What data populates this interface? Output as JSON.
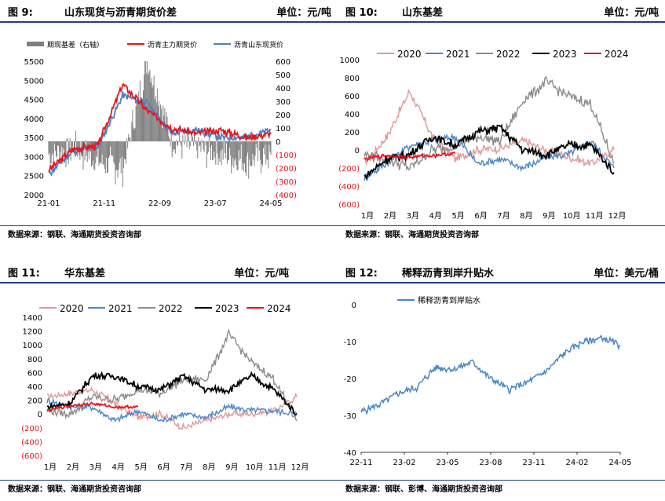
{
  "charts": [
    {
      "fig_label": "图 9:",
      "title": "山东现货与沥青期货价差",
      "unit": "单位：元/吨",
      "source": "数据来源：钢联、海通期货投资咨询部",
      "legend": [
        "期现基差（右轴）",
        "沥青主力期货价",
        "沥青山东现货价"
      ],
      "left_ticks": [
        "5500",
        "5000",
        "4500",
        "4000",
        "3500",
        "3000",
        "2500",
        "2000"
      ],
      "right_ticks": [
        "600",
        "500",
        "400",
        "300",
        "200",
        "100",
        "0",
        "(100)",
        "(200)",
        "(300)",
        "(400)"
      ],
      "x_ticks": [
        "21-01",
        "21-11",
        "22-09",
        "23-07",
        "24-05"
      ]
    },
    {
      "fig_label": "图 10:",
      "title": "山东基差",
      "unit": "单位：元/吨",
      "source": "数据来源：钢联、海通期货投资咨询部",
      "legend": [
        "2020",
        "2021",
        "2022",
        "2023",
        "2024"
      ],
      "y_ticks": [
        "1000",
        "800",
        "600",
        "400",
        "200",
        "0",
        "(200)",
        "(400)",
        "(600)"
      ],
      "x_ticks": [
        "1月",
        "2月",
        "3月",
        "4月",
        "5月",
        "6月",
        "7月",
        "8月",
        "9月",
        "10月",
        "11月",
        "12月"
      ]
    },
    {
      "fig_label": "图 11:",
      "title": "华东基差",
      "unit": "单位：元/吨",
      "source": "数据来源：钢联、海通期货投资咨询部",
      "legend": [
        "2020",
        "2021",
        "2022",
        "2023",
        "2024"
      ],
      "y_ticks": [
        "1400",
        "1200",
        "1000",
        "800",
        "600",
        "400",
        "200",
        "0",
        "(200)",
        "(400)",
        "(600)"
      ],
      "x_ticks": [
        "1月",
        "2月",
        "3月",
        "4月",
        "5月",
        "6月",
        "7月",
        "8月",
        "9月",
        "10月",
        "11月",
        "12月"
      ]
    },
    {
      "fig_label": "图 12:",
      "title": "稀释沥青到岸升贴水",
      "unit": "单位：美元/桶",
      "source": "数据来源：钢联、彭博、海通期货投资咨询部",
      "legend": [
        "稀释沥青到岸贴水"
      ],
      "y_ticks": [
        "0",
        "-10",
        "-20",
        "-30",
        "-40"
      ],
      "x_ticks": [
        "22-11",
        "23-02",
        "23-05",
        "23-08",
        "23-11",
        "24-02",
        "24-05"
      ]
    }
  ],
  "chart_data": [
    {
      "type": "line",
      "title": "山东现货与沥青期货价差",
      "x": [
        "21-01",
        "21-06",
        "21-11",
        "22-04",
        "22-06",
        "22-09",
        "23-02",
        "23-07",
        "23-12",
        "24-05"
      ],
      "ylim": [
        2000,
        5500
      ],
      "y2lim": [
        -400,
        600
      ],
      "series": [
        {
          "name": "沥青主力期货价",
          "axis": "left",
          "color": "#e8141a",
          "values": [
            2650,
            3200,
            3300,
            4900,
            4200,
            3750,
            3600,
            3700,
            3500,
            3600
          ]
        },
        {
          "name": "沥青山东现货价",
          "axis": "left",
          "color": "#4a7fc8",
          "values": [
            2550,
            3150,
            3250,
            4600,
            4400,
            3600,
            3700,
            3500,
            3500,
            3700
          ]
        },
        {
          "name": "期现基差（右轴）",
          "axis": "right",
          "type": "bar",
          "color": "#808080",
          "values": [
            -100,
            -50,
            -150,
            -200,
            600,
            0,
            -50,
            -100,
            -150,
            -100
          ]
        }
      ]
    },
    {
      "type": "line",
      "title": "山东基差",
      "categories": [
        "1月",
        "2月",
        "3月",
        "4月",
        "5月",
        "6月",
        "7月",
        "8月",
        "9月",
        "10月",
        "11月",
        "12月"
      ],
      "ylim": [
        -600,
        1000
      ],
      "series": [
        {
          "name": "2020",
          "color": "#e0999a",
          "values": [
            -150,
            150,
            650,
            150,
            -100,
            0,
            20,
            100,
            0,
            -80,
            -150,
            0
          ]
        },
        {
          "name": "2021",
          "color": "#4a86c8",
          "values": [
            -300,
            -150,
            50,
            100,
            150,
            -150,
            -100,
            -200,
            -80,
            -50,
            100,
            -200
          ]
        },
        {
          "name": "2022",
          "color": "#8c8c8c",
          "values": [
            -50,
            -100,
            -200,
            0,
            50,
            150,
            100,
            550,
            750,
            600,
            500,
            -150
          ]
        },
        {
          "name": "2023",
          "color": "#000000",
          "values": [
            -300,
            -100,
            -50,
            150,
            50,
            200,
            250,
            0,
            -50,
            50,
            50,
            -250
          ]
        },
        {
          "name": "2024",
          "color": "#e8141a",
          "values": [
            -100,
            -60,
            -80,
            -60,
            -40,
            null,
            null,
            null,
            null,
            null,
            null,
            null
          ]
        }
      ]
    },
    {
      "type": "line",
      "title": "华东基差",
      "categories": [
        "1月",
        "2月",
        "3月",
        "4月",
        "5月",
        "6月",
        "7月",
        "8月",
        "9月",
        "10月",
        "11月",
        "12月"
      ],
      "ylim": [
        -600,
        1400
      ],
      "series": [
        {
          "name": "2020",
          "color": "#e0999a",
          "values": [
            250,
            300,
            350,
            150,
            -50,
            0,
            -200,
            -100,
            0,
            0,
            50,
            250
          ]
        },
        {
          "name": "2021",
          "color": "#4a86c8",
          "values": [
            200,
            100,
            100,
            -100,
            50,
            -100,
            0,
            -50,
            100,
            50,
            50,
            0
          ]
        },
        {
          "name": "2022",
          "color": "#8c8c8c",
          "values": [
            50,
            0,
            250,
            200,
            350,
            300,
            500,
            500,
            1150,
            750,
            500,
            -100
          ]
        },
        {
          "name": "2023",
          "color": "#000000",
          "values": [
            100,
            150,
            550,
            550,
            400,
            350,
            550,
            350,
            350,
            550,
            350,
            0
          ]
        },
        {
          "name": "2024",
          "color": "#e8141a",
          "values": [
            50,
            120,
            150,
            100,
            100,
            null,
            null,
            null,
            null,
            null,
            null,
            null
          ]
        }
      ]
    },
    {
      "type": "line",
      "title": "稀释沥青到岸升贴水",
      "x": [
        "22-11",
        "23-01",
        "23-02",
        "23-04",
        "23-05",
        "23-06",
        "23-08",
        "23-09",
        "23-10",
        "23-11",
        "24-01",
        "24-02",
        "24-03",
        "24-04",
        "24-05"
      ],
      "ylim": [
        -40,
        0
      ],
      "series": [
        {
          "name": "稀释沥青到岸贴水",
          "color": "#4a86c8",
          "values": [
            -29,
            -27,
            -24,
            -22.5,
            -17,
            -17.5,
            -15.5,
            -20,
            -23,
            -21,
            -18,
            -13,
            -10,
            -9,
            -11
          ]
        }
      ]
    }
  ]
}
